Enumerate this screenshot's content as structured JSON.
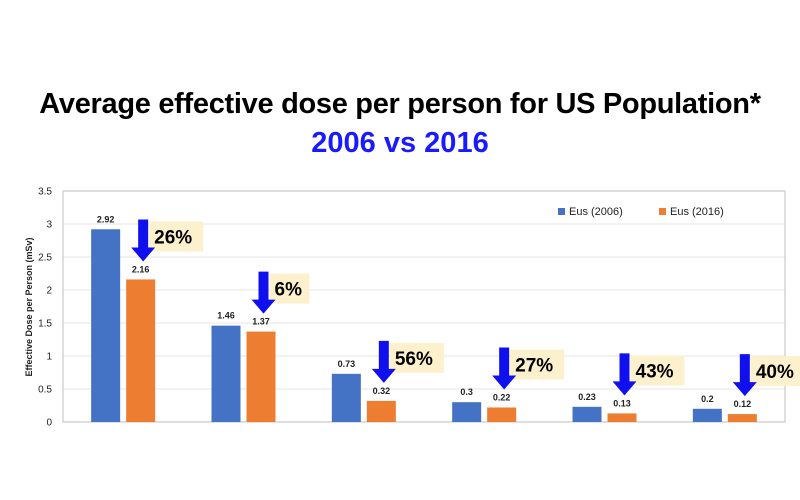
{
  "chart_data": {
    "type": "bar",
    "title": "Average effective dose per person for US Population*",
    "subtitle": "2006 vs 2016",
    "xlabel": "",
    "ylabel": "Effective Dose per Person (mSv)",
    "ylim": [
      0,
      3.5
    ],
    "yticks": [
      0,
      0.5,
      1,
      1.5,
      2,
      2.5,
      3,
      3.5
    ],
    "ytick_labels": [
      "0",
      "0.5",
      "1",
      "1.5",
      "2",
      "2.5",
      "3",
      "3.5"
    ],
    "grid": true,
    "legend_position": "top-right",
    "categories": [
      "",
      "",
      "",
      "",
      "",
      ""
    ],
    "series": [
      {
        "name": "Eus (2006)",
        "color": "#4472c4",
        "values": [
          2.92,
          1.46,
          0.73,
          0.3,
          0.23,
          0.2
        ],
        "labels": [
          "2.92",
          "1.46",
          "0.73",
          "0.3",
          "0.23",
          "0.2"
        ]
      },
      {
        "name": "Eus (2016)",
        "color": "#ed7d31",
        "values": [
          2.16,
          1.37,
          0.32,
          0.22,
          0.13,
          0.12
        ],
        "labels": [
          "2.16",
          "1.37",
          "0.32",
          "0.22",
          "0.13",
          "0.12"
        ]
      }
    ],
    "annotations": [
      {
        "text": "26%",
        "group": 0
      },
      {
        "text": "6%",
        "group": 1
      },
      {
        "text": "56%",
        "group": 2
      },
      {
        "text": "27%",
        "group": 3
      },
      {
        "text": "43%",
        "group": 4
      },
      {
        "text": "40%",
        "group": 5
      }
    ],
    "annotation_arrow_color": "#1010ee",
    "annotation_box_color": "#fdf0cc"
  }
}
